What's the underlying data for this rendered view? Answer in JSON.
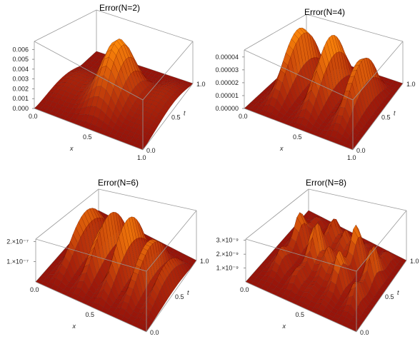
{
  "chart_data": [
    {
      "type": "surface",
      "title": "Error(N=2)",
      "xlabel": "x",
      "tlabel": "t",
      "x_ticks": [
        "0.0",
        "0.5",
        "1.0"
      ],
      "t_ticks": [
        "0.0",
        "0.5",
        "1.0"
      ],
      "z_ticks": [
        "0.000",
        "0.001",
        "0.002",
        "0.003",
        "0.004",
        "0.005",
        "0.006"
      ],
      "z_max": 0.0068,
      "ridges": [
        {
          "x": 0.12,
          "peak_t": 0.65,
          "max": 0.0012
        },
        {
          "x": 0.5,
          "peak_t": 0.72,
          "max": 0.0068
        },
        {
          "x": 0.88,
          "peak_t": 0.85,
          "max": 0.0012
        }
      ]
    },
    {
      "type": "surface",
      "title": "Error(N=4)",
      "xlabel": "x",
      "tlabel": "t",
      "x_ticks": [
        "0.0",
        "0.5",
        "1.0"
      ],
      "t_ticks": [
        "0.0",
        "0.5",
        "1.0"
      ],
      "z_ticks": [
        "0.00000",
        "0.00001",
        "0.00002",
        "0.00003",
        "0.00004"
      ],
      "z_max": 4.3e-05,
      "ridges": [
        {
          "x": 0.2,
          "peak_t": 0.8,
          "max": 4.1e-05
        },
        {
          "x": 0.5,
          "peak_t": 0.8,
          "max": 4.2e-05
        },
        {
          "x": 0.8,
          "peak_t": 0.8,
          "max": 3.5e-05
        }
      ]
    },
    {
      "type": "surface",
      "title": "Error(N=6)",
      "xlabel": "x",
      "tlabel": "t",
      "x_ticks": [
        "0.0",
        "0.5",
        "1.0"
      ],
      "t_ticks": [
        "0.0",
        "0.5",
        "1.0"
      ],
      "z_ticks": [
        "1.×10⁻⁷",
        "2.×10⁻⁷"
      ],
      "z_max": 2.4e-07,
      "ridges": [
        {
          "x": 0.15,
          "peak_t": 0.8,
          "max": 1.8e-07
        },
        {
          "x": 0.35,
          "peak_t": 0.8,
          "max": 2.2e-07
        },
        {
          "x": 0.55,
          "peak_t": 0.8,
          "max": 2.3e-07
        },
        {
          "x": 0.75,
          "peak_t": 0.8,
          "max": 1.9e-07
        },
        {
          "x": 0.92,
          "peak_t": 0.8,
          "max": 1.1e-07
        }
      ]
    },
    {
      "type": "surface",
      "title": "Error(N=8)",
      "xlabel": "x",
      "tlabel": "t",
      "x_ticks": [
        "0.0",
        "0.5",
        "1.0"
      ],
      "t_ticks": [
        "0.0",
        "0.5",
        "1.0"
      ],
      "z_ticks": [
        "1.×10⁻⁹",
        "2.×10⁻⁹",
        "3.×10⁻⁹"
      ],
      "z_max": 3.5e-09,
      "ridges": [
        {
          "x": 0.15,
          "peak_t": 0.85,
          "max": 2.5e-09
        },
        {
          "x": 0.35,
          "peak_t": 0.85,
          "max": 3.2e-09
        },
        {
          "x": 0.5,
          "peak_t": 0.85,
          "max": 2.2e-09
        },
        {
          "x": 0.65,
          "peak_t": 0.85,
          "max": 3.4e-09
        },
        {
          "x": 0.85,
          "peak_t": 0.85,
          "max": 2.8e-09
        }
      ]
    }
  ]
}
